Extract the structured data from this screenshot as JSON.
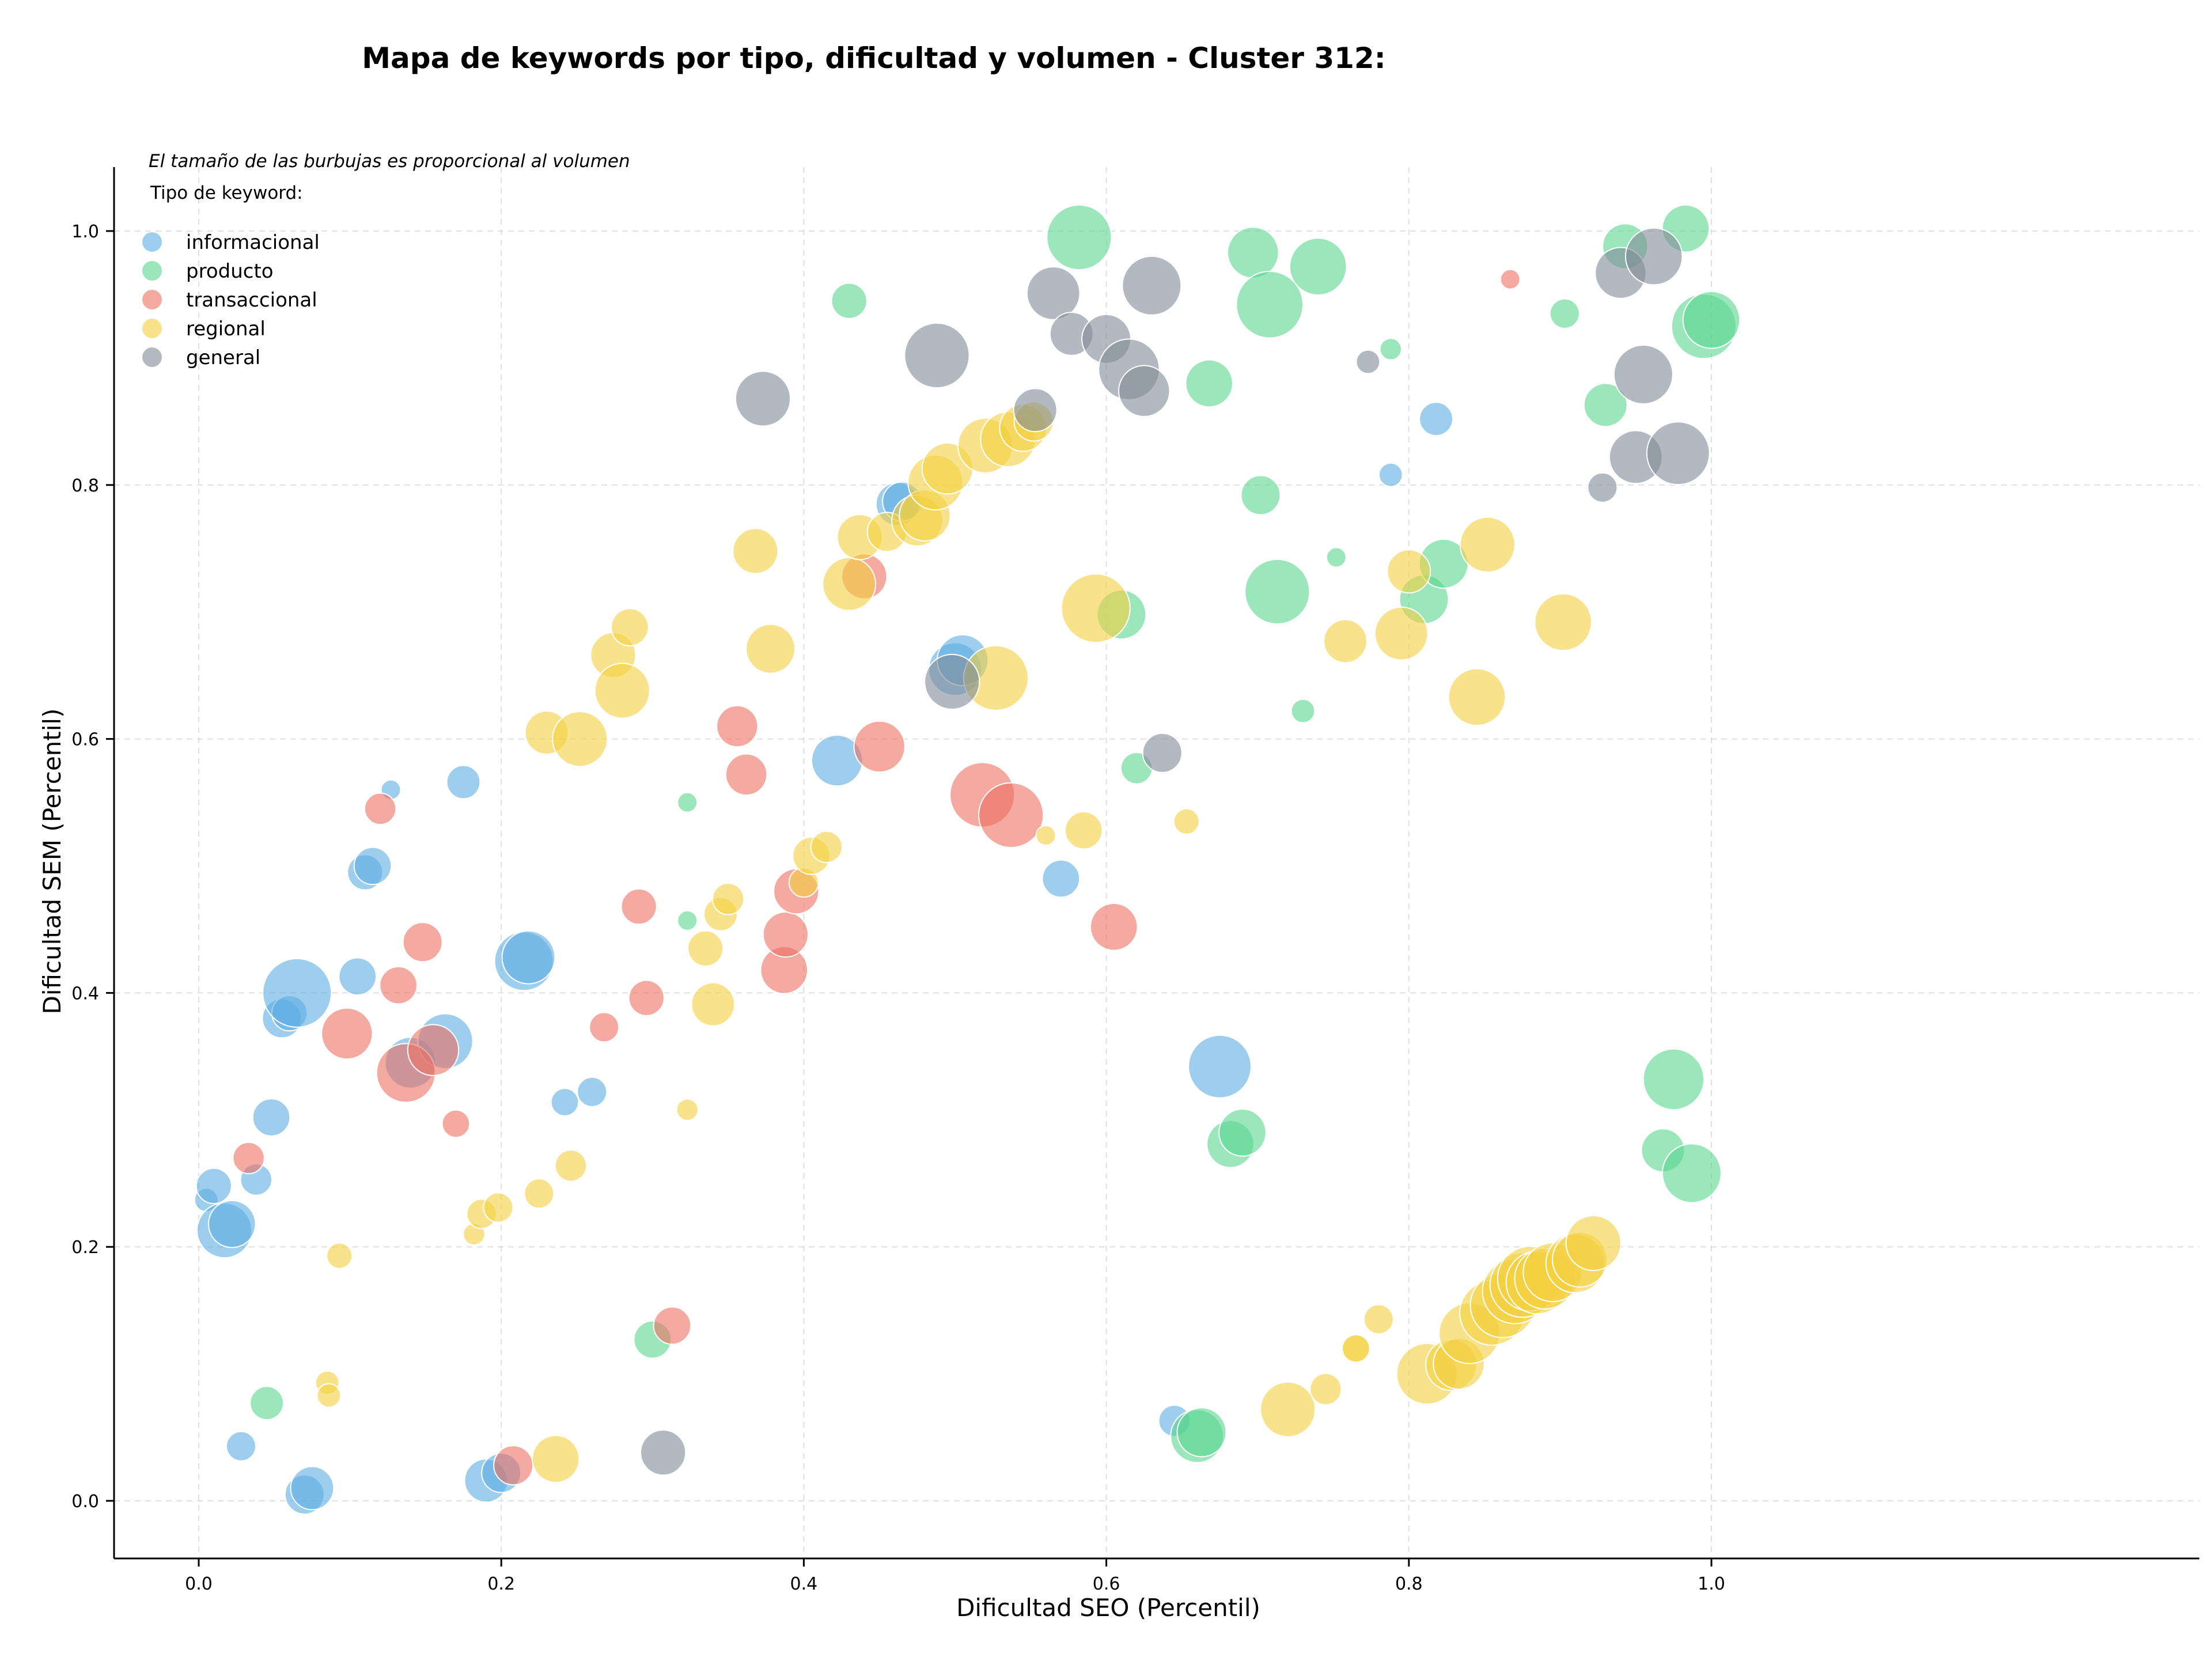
{
  "chart_data": {
    "type": "scatter",
    "title": "Mapa de keywords por tipo, dificultad y volumen - Cluster 312:",
    "xlabel": "Dificultad SEO (Percentil)",
    "ylabel": "Dificultad SEM (Percentil)",
    "xlim": [
      -0.04,
      1.05
    ],
    "ylim": [
      -0.045,
      1.05
    ],
    "xticks": [
      0.0,
      0.2,
      0.4,
      0.6,
      0.8,
      1.0
    ],
    "yticks": [
      0.0,
      0.2,
      0.4,
      0.6,
      0.8,
      1.0
    ],
    "xtick_labels": [
      "0.0",
      "0.2",
      "0.4",
      "0.6",
      "0.8",
      "1.0"
    ],
    "ytick_labels": [
      "0.0",
      "0.2",
      "0.4",
      "0.6",
      "0.8",
      "1.0"
    ],
    "grid": true,
    "note": "El tamaño de las burbujas es proporcional al volumen",
    "legend_title": "Tipo de keyword:",
    "legend_position": "top-left",
    "series": [
      {
        "name": "informacional",
        "color": "#5DADE2",
        "points": [
          [
            0.005,
            0.237,
            1.2
          ],
          [
            0.01,
            0.248,
            1.8
          ],
          [
            0.017,
            0.213,
            2.8
          ],
          [
            0.022,
            0.218,
            2.4
          ],
          [
            0.028,
            0.043,
            1.5
          ],
          [
            0.038,
            0.253,
            1.6
          ],
          [
            0.048,
            0.302,
            1.9
          ],
          [
            0.055,
            0.38,
            2.0
          ],
          [
            0.06,
            0.384,
            1.8
          ],
          [
            0.065,
            0.4,
            3.5
          ],
          [
            0.07,
            0.005,
            2.0
          ],
          [
            0.075,
            0.01,
            2.2
          ],
          [
            0.105,
            0.413,
            1.9
          ],
          [
            0.11,
            0.495,
            1.8
          ],
          [
            0.115,
            0.5,
            1.9
          ],
          [
            0.127,
            0.56,
            1.0
          ],
          [
            0.14,
            0.345,
            2.6
          ],
          [
            0.163,
            0.362,
            2.8
          ],
          [
            0.175,
            0.566,
            1.7
          ],
          [
            0.19,
            0.016,
            2.2
          ],
          [
            0.2,
            0.022,
            2.0
          ],
          [
            0.215,
            0.425,
            3.0
          ],
          [
            0.218,
            0.428,
            2.7
          ],
          [
            0.242,
            0.314,
            1.4
          ],
          [
            0.26,
            0.322,
            1.5
          ],
          [
            0.422,
            0.583,
            2.6
          ],
          [
            0.462,
            0.785,
            2.2
          ],
          [
            0.465,
            0.787,
            2.0
          ],
          [
            0.5,
            0.655,
            2.7
          ],
          [
            0.505,
            0.662,
            2.6
          ],
          [
            0.57,
            0.49,
            1.9
          ],
          [
            0.645,
            0.063,
            1.6
          ],
          [
            0.675,
            0.342,
            3.2
          ],
          [
            0.788,
            0.808,
            1.2
          ],
          [
            0.818,
            0.852,
            1.7
          ]
        ]
      },
      {
        "name": "producto",
        "color": "#58D68D",
        "points": [
          [
            0.045,
            0.077,
            1.7
          ],
          [
            0.3,
            0.127,
            1.9
          ],
          [
            0.323,
            0.55,
            1.0
          ],
          [
            0.323,
            0.457,
            1.0
          ],
          [
            0.43,
            0.945,
            1.8
          ],
          [
            0.582,
            0.995,
            3.3
          ],
          [
            0.61,
            0.698,
            2.5
          ],
          [
            0.62,
            0.577,
            1.6
          ],
          [
            0.66,
            0.051,
            2.7
          ],
          [
            0.663,
            0.054,
            2.5
          ],
          [
            0.668,
            0.88,
            2.4
          ],
          [
            0.682,
            0.281,
            2.4
          ],
          [
            0.69,
            0.29,
            2.4
          ],
          [
            0.697,
            0.983,
            2.6
          ],
          [
            0.702,
            0.792,
            2.0
          ],
          [
            0.708,
            0.942,
            3.4
          ],
          [
            0.713,
            0.716,
            3.3
          ],
          [
            0.73,
            0.622,
            1.2
          ],
          [
            0.74,
            0.972,
            2.9
          ],
          [
            0.752,
            0.743,
            1.0
          ],
          [
            0.788,
            0.907,
            1.1
          ],
          [
            0.81,
            0.71,
            2.5
          ],
          [
            0.823,
            0.738,
            2.5
          ],
          [
            0.93,
            0.863,
            2.2
          ],
          [
            0.943,
            0.988,
            2.3
          ],
          [
            0.968,
            0.276,
            2.2
          ],
          [
            0.975,
            0.332,
            3.1
          ],
          [
            0.987,
            0.258,
            3.0
          ],
          [
            0.983,
            1.002,
            2.4
          ],
          [
            0.995,
            0.925,
            3.3
          ],
          [
            1.0,
            0.93,
            2.9
          ],
          [
            0.903,
            0.935,
            1.5
          ]
        ]
      },
      {
        "name": "transaccional",
        "color": "#EC7063",
        "points": [
          [
            0.033,
            0.27,
            1.6
          ],
          [
            0.098,
            0.368,
            2.6
          ],
          [
            0.12,
            0.545,
            1.6
          ],
          [
            0.132,
            0.406,
            1.9
          ],
          [
            0.137,
            0.337,
            3.0
          ],
          [
            0.148,
            0.44,
            2.0
          ],
          [
            0.155,
            0.355,
            2.6
          ],
          [
            0.17,
            0.297,
            1.4
          ],
          [
            0.208,
            0.028,
            2.0
          ],
          [
            0.268,
            0.373,
            1.5
          ],
          [
            0.291,
            0.468,
            1.8
          ],
          [
            0.296,
            0.396,
            1.8
          ],
          [
            0.313,
            0.138,
            1.9
          ],
          [
            0.356,
            0.61,
            2.1
          ],
          [
            0.362,
            0.572,
            2.1
          ],
          [
            0.387,
            0.418,
            2.4
          ],
          [
            0.388,
            0.446,
            2.3
          ],
          [
            0.395,
            0.48,
            2.3
          ],
          [
            0.44,
            0.728,
            2.3
          ],
          [
            0.45,
            0.594,
            2.6
          ],
          [
            0.518,
            0.556,
            3.3
          ],
          [
            0.537,
            0.54,
            3.3
          ],
          [
            0.605,
            0.452,
            2.4
          ],
          [
            0.867,
            0.962,
            1.0
          ]
        ]
      },
      {
        "name": "regional",
        "color": "#F4D03F",
        "points": [
          [
            0.085,
            0.093,
            1.2
          ],
          [
            0.086,
            0.083,
            1.2
          ],
          [
            0.093,
            0.193,
            1.3
          ],
          [
            0.182,
            0.21,
            1.1
          ],
          [
            0.187,
            0.226,
            1.5
          ],
          [
            0.198,
            0.231,
            1.5
          ],
          [
            0.225,
            0.242,
            1.5
          ],
          [
            0.23,
            0.605,
            2.2
          ],
          [
            0.236,
            0.033,
            2.4
          ],
          [
            0.246,
            0.264,
            1.6
          ],
          [
            0.252,
            0.6,
            2.8
          ],
          [
            0.274,
            0.666,
            2.3
          ],
          [
            0.28,
            0.638,
            2.8
          ],
          [
            0.285,
            0.688,
            1.9
          ],
          [
            0.323,
            0.308,
            1.1
          ],
          [
            0.335,
            0.435,
            1.8
          ],
          [
            0.34,
            0.391,
            2.2
          ],
          [
            0.345,
            0.462,
            1.7
          ],
          [
            0.35,
            0.474,
            1.6
          ],
          [
            0.368,
            0.748,
            2.3
          ],
          [
            0.378,
            0.671,
            2.5
          ],
          [
            0.4,
            0.487,
            1.5
          ],
          [
            0.405,
            0.508,
            1.9
          ],
          [
            0.415,
            0.515,
            1.6
          ],
          [
            0.43,
            0.722,
            2.7
          ],
          [
            0.437,
            0.759,
            2.3
          ],
          [
            0.455,
            0.763,
            2.0
          ],
          [
            0.475,
            0.772,
            2.6
          ],
          [
            0.48,
            0.776,
            2.6
          ],
          [
            0.487,
            0.802,
            2.8
          ],
          [
            0.495,
            0.813,
            2.6
          ],
          [
            0.52,
            0.831,
            2.8
          ],
          [
            0.527,
            0.648,
            3.3
          ],
          [
            0.535,
            0.836,
            2.8
          ],
          [
            0.545,
            0.845,
            2.4
          ],
          [
            0.552,
            0.85,
            2.0
          ],
          [
            0.56,
            0.524,
            1.0
          ],
          [
            0.585,
            0.528,
            1.9
          ],
          [
            0.593,
            0.703,
            3.5
          ],
          [
            0.653,
            0.535,
            1.3
          ],
          [
            0.72,
            0.072,
            2.8
          ],
          [
            0.745,
            0.088,
            1.6
          ],
          [
            0.758,
            0.677,
            2.2
          ],
          [
            0.765,
            0.12,
            1.4
          ],
          [
            0.765,
            0.12,
            1.4
          ],
          [
            0.78,
            0.143,
            1.5
          ],
          [
            0.795,
            0.683,
            2.7
          ],
          [
            0.8,
            0.732,
            2.2
          ],
          [
            0.812,
            0.1,
            3.1
          ],
          [
            0.828,
            0.107,
            2.6
          ],
          [
            0.833,
            0.108,
            2.6
          ],
          [
            0.84,
            0.132,
            3.1
          ],
          [
            0.845,
            0.633,
            2.9
          ],
          [
            0.852,
            0.753,
            2.8
          ],
          [
            0.855,
            0.148,
            3.3
          ],
          [
            0.862,
            0.154,
            3.3
          ],
          [
            0.87,
            0.165,
            3.3
          ],
          [
            0.875,
            0.17,
            3.3
          ],
          [
            0.88,
            0.175,
            3.3
          ],
          [
            0.885,
            0.172,
            3.2
          ],
          [
            0.89,
            0.175,
            3.1
          ],
          [
            0.895,
            0.18,
            3.0
          ],
          [
            0.902,
            0.692,
            2.9
          ],
          [
            0.91,
            0.187,
            3.0
          ],
          [
            0.913,
            0.19,
            2.8
          ],
          [
            0.922,
            0.203,
            2.8
          ]
        ]
      },
      {
        "name": "general",
        "color": "#808B96",
        "points": [
          [
            0.307,
            0.038,
            2.3
          ],
          [
            0.373,
            0.868,
            2.8
          ],
          [
            0.488,
            0.902,
            3.3
          ],
          [
            0.498,
            0.645,
            2.8
          ],
          [
            0.553,
            0.859,
            2.2
          ],
          [
            0.565,
            0.951,
            2.7
          ],
          [
            0.577,
            0.919,
            2.2
          ],
          [
            0.6,
            0.915,
            2.5
          ],
          [
            0.615,
            0.891,
            3.1
          ],
          [
            0.625,
            0.874,
            2.6
          ],
          [
            0.63,
            0.957,
            3.0
          ],
          [
            0.637,
            0.589,
            2.0
          ],
          [
            0.773,
            0.897,
            1.2
          ],
          [
            0.928,
            0.798,
            1.5
          ],
          [
            0.94,
            0.967,
            2.6
          ],
          [
            0.95,
            0.822,
            2.7
          ],
          [
            0.955,
            0.887,
            3.0
          ],
          [
            0.962,
            0.98,
            2.9
          ],
          [
            0.978,
            0.825,
            3.2
          ]
        ]
      }
    ]
  }
}
